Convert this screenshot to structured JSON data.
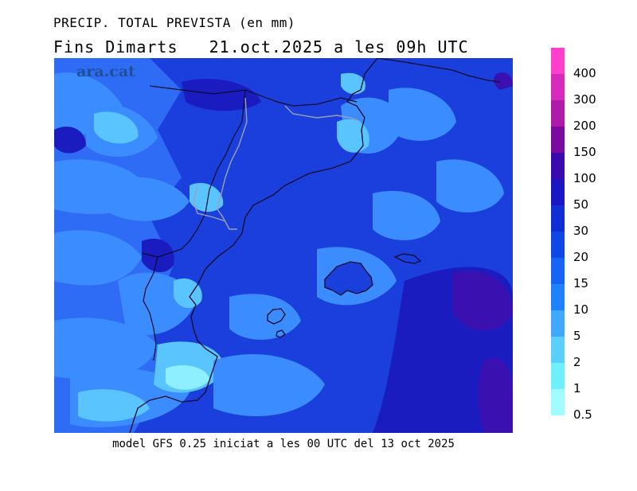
{
  "title_line1": "PRECIP. TOTAL PREVISTA (en mm)",
  "title_line2": "Fins Dimarts   21.oct.2025 a les 09h UTC",
  "watermark": "ara.cat",
  "caption": "model GFS 0.25 iniciat a les 00 UTC del 13 oct 2025",
  "legend": {
    "thresholds": [
      "0.5",
      "1",
      "2",
      "5",
      "10",
      "15",
      "20",
      "30",
      "50",
      "100",
      "150",
      "200",
      "300",
      "400"
    ],
    "colors": [
      "#a0fcff",
      "#6ef0ff",
      "#5bd0ff",
      "#40a8ff",
      "#1e82ff",
      "#1664f5",
      "#0f46e8",
      "#102ed6",
      "#1a16c4",
      "#3a0ab0",
      "#7a0aa0",
      "#b01aa8",
      "#d82abb",
      "#ff40cc"
    ]
  },
  "map_colors": {
    "background": "#1a3fdc",
    "light": "#3a8cff",
    "lighter": "#5ac4ff",
    "lightest": "#8ef0ff",
    "dark": "#1a1cc0",
    "purple": "#3a10b0",
    "coast": "#0b0b2a",
    "border": "#9aa0b8"
  }
}
